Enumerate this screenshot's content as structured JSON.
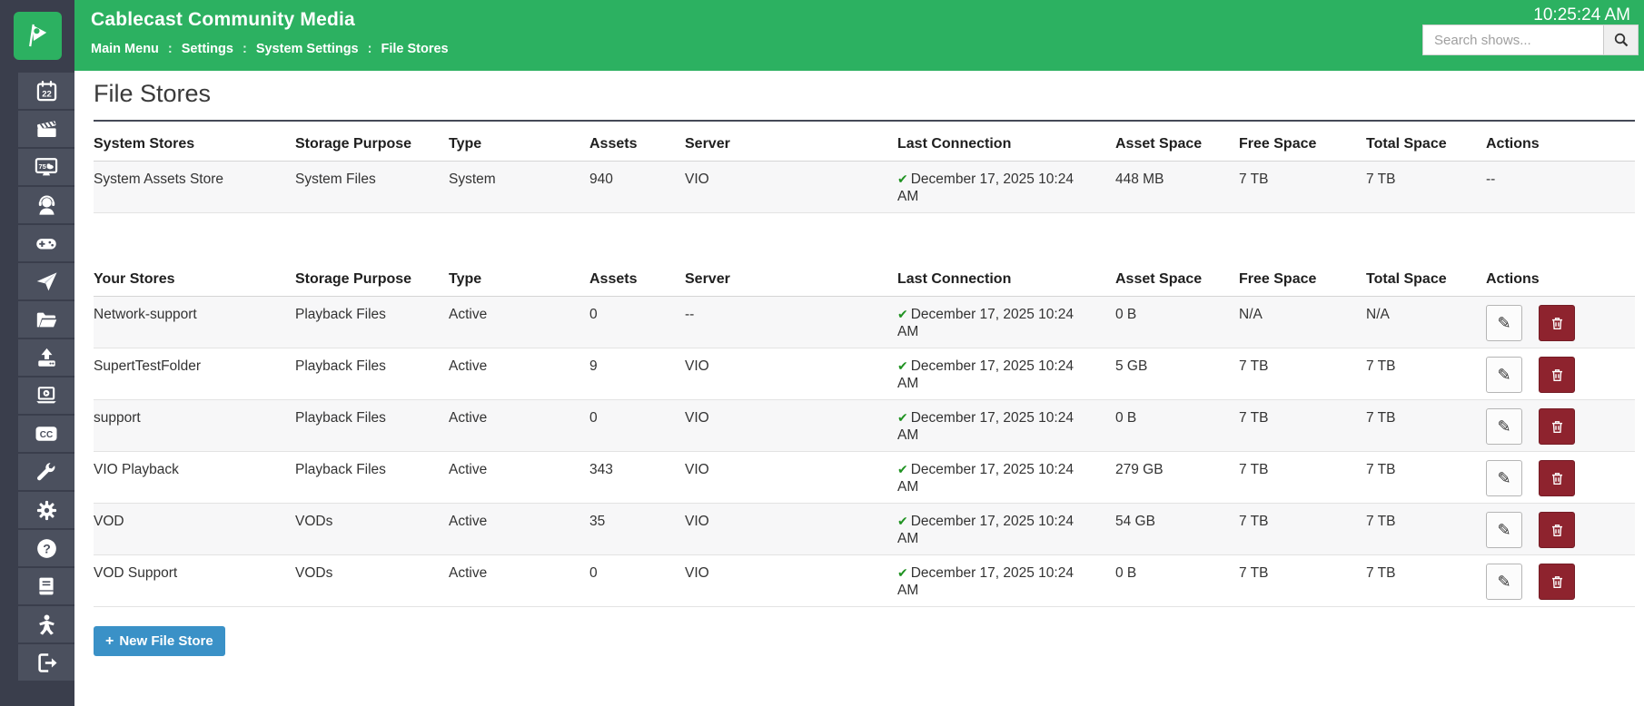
{
  "app": {
    "title": "Cablecast Community Media",
    "clock": "10:25:24 AM",
    "search_placeholder": "Search shows...",
    "breadcrumb": {
      "items": [
        "Main Menu",
        "Settings",
        "System Settings",
        "File Stores"
      ],
      "separator": ":"
    }
  },
  "sidebar": {
    "items": [
      {
        "icon": "calendar-icon",
        "label": "22"
      },
      {
        "icon": "clapperboard-icon",
        "label": ""
      },
      {
        "icon": "tv-bulletin-icon",
        "label": "75"
      },
      {
        "icon": "headset-icon",
        "label": ""
      },
      {
        "icon": "gamepad-icon",
        "label": ""
      },
      {
        "icon": "paper-plane-icon",
        "label": ""
      },
      {
        "icon": "folder-icon",
        "label": ""
      },
      {
        "icon": "upload-icon",
        "label": ""
      },
      {
        "icon": "laptop-play-icon",
        "label": ""
      },
      {
        "icon": "closed-captions-icon",
        "label": "CC"
      },
      {
        "icon": "wrench-icon",
        "label": ""
      },
      {
        "icon": "gear-icon",
        "label": ""
      },
      {
        "icon": "help-icon",
        "label": "?"
      },
      {
        "icon": "book-icon",
        "label": ""
      },
      {
        "icon": "person-star-icon",
        "label": ""
      },
      {
        "icon": "sign-out-icon",
        "label": ""
      }
    ]
  },
  "page": {
    "title": "File Stores",
    "new_file_store": {
      "plus": "+",
      "label": "New File Store"
    }
  },
  "icons": {
    "check": "✔",
    "pencil": "✎"
  },
  "tables": [
    {
      "id": "system-stores",
      "columns": [
        "System Stores",
        "Storage Purpose",
        "Type",
        "Assets",
        "Server",
        "Last Connection",
        "Asset Space",
        "Free Space",
        "Total Space",
        "Actions"
      ],
      "rows": [
        {
          "name": "System Assets Store",
          "purpose": "System Files",
          "type": "System",
          "assets": "940",
          "server": "VIO",
          "connection_ok": true,
          "last_connection": "December 17, 2025 10:24 AM",
          "asset_space": "448 MB",
          "free_space": "7 TB",
          "total_space": "7 TB",
          "actions": "--"
        }
      ]
    },
    {
      "id": "your-stores",
      "columns": [
        "Your Stores",
        "Storage Purpose",
        "Type",
        "Assets",
        "Server",
        "Last Connection",
        "Asset Space",
        "Free Space",
        "Total Space",
        "Actions"
      ],
      "rows": [
        {
          "name": "Network-support",
          "purpose": "Playback Files",
          "type": "Active",
          "assets": "0",
          "server": "--",
          "connection_ok": true,
          "last_connection": "December 17, 2025 10:24 AM",
          "asset_space": "0 B",
          "free_space": "N/A",
          "total_space": "N/A",
          "actions": "buttons"
        },
        {
          "name": "SupertTestFolder",
          "purpose": "Playback Files",
          "type": "Active",
          "assets": "9",
          "server": "VIO",
          "connection_ok": true,
          "last_connection": "December 17, 2025 10:24 AM",
          "asset_space": "5 GB",
          "free_space": "7 TB",
          "total_space": "7 TB",
          "actions": "buttons"
        },
        {
          "name": "support",
          "purpose": "Playback Files",
          "type": "Active",
          "assets": "0",
          "server": "VIO",
          "connection_ok": true,
          "last_connection": "December 17, 2025 10:24 AM",
          "asset_space": "0 B",
          "free_space": "7 TB",
          "total_space": "7 TB",
          "actions": "buttons"
        },
        {
          "name": "VIO Playback",
          "purpose": "Playback Files",
          "type": "Active",
          "assets": "343",
          "server": "VIO",
          "connection_ok": true,
          "last_connection": "December 17, 2025 10:24 AM",
          "asset_space": "279 GB",
          "free_space": "7 TB",
          "total_space": "7 TB",
          "actions": "buttons"
        },
        {
          "name": "VOD",
          "purpose": "VODs",
          "type": "Active",
          "assets": "35",
          "server": "VIO",
          "connection_ok": true,
          "last_connection": "December 17, 2025 10:24 AM",
          "asset_space": "54 GB",
          "free_space": "7 TB",
          "total_space": "7 TB",
          "actions": "buttons"
        },
        {
          "name": "VOD Support",
          "purpose": "VODs",
          "type": "Active",
          "assets": "0",
          "server": "VIO",
          "connection_ok": true,
          "last_connection": "December 17, 2025 10:24 AM",
          "asset_space": "0 B",
          "free_space": "7 TB",
          "total_space": "7 TB",
          "actions": "buttons"
        }
      ]
    }
  ],
  "colors": {
    "header_green": "#2cb161",
    "sidebar_bg": "#3a3e4c",
    "sidebar_cell": "#4b505e",
    "accent_blue": "#3a91c7",
    "delete_red": "#8e232e",
    "check_green": "#1f9221",
    "row_alt": "#f7f7f8"
  }
}
